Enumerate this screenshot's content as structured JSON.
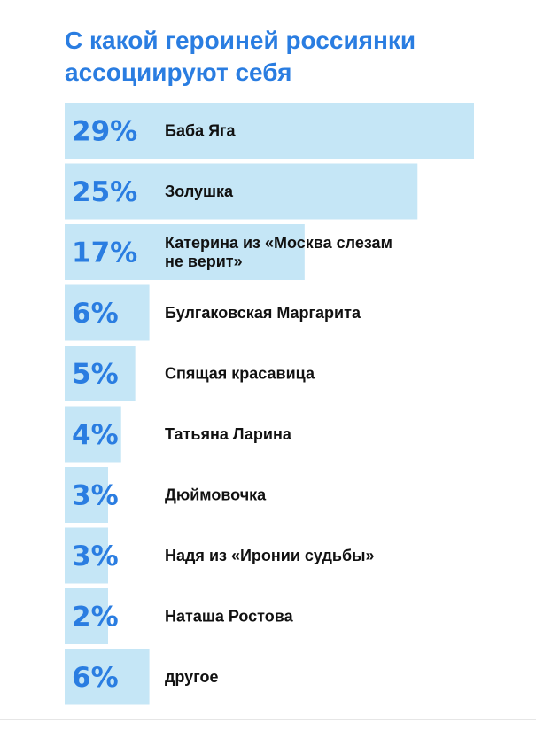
{
  "chart_data": {
    "type": "bar",
    "orientation": "horizontal",
    "title": "С какой героиней россиянки ассоциируют себя",
    "title_lines": [
      "С какой героиней россиянки",
      "ассоциируют себя"
    ],
    "categories": [
      "Баба Яга",
      "Золушка",
      "Катерина из «Москва слезам не верит»",
      "Булгаковская Маргарита",
      "Спящая красавица",
      "Татьяна Ларина",
      "Дюймовочка",
      "Надя из «Иронии судьбы»",
      "Наташа Ростова",
      "другое"
    ],
    "category_lines": [
      [
        "Баба Яга"
      ],
      [
        "Золушка"
      ],
      [
        "Катерина из «Москва слезам",
        "не верит»"
      ],
      [
        "Булгаковская Маргарита"
      ],
      [
        "Спящая красавица"
      ],
      [
        "Татьяна Ларина"
      ],
      [
        "Дюймовочка"
      ],
      [
        "Надя из «Иронии судьбы»"
      ],
      [
        "Наташа Ростова"
      ],
      [
        "другое"
      ]
    ],
    "values": [
      29,
      25,
      17,
      6,
      5,
      4,
      3,
      3,
      2,
      6
    ],
    "value_labels": [
      "29%",
      "25%",
      "17%",
      "6%",
      "5%",
      "4%",
      "3%",
      "3%",
      "2%",
      "6%"
    ],
    "unit": "%",
    "xlim": [
      0,
      29
    ],
    "legend": "none",
    "grid": false
  },
  "colors": {
    "title": "#2a7de1",
    "bar_fill": "#c5e6f6",
    "value_text": "#2a7de1",
    "label_text": "#111111"
  }
}
